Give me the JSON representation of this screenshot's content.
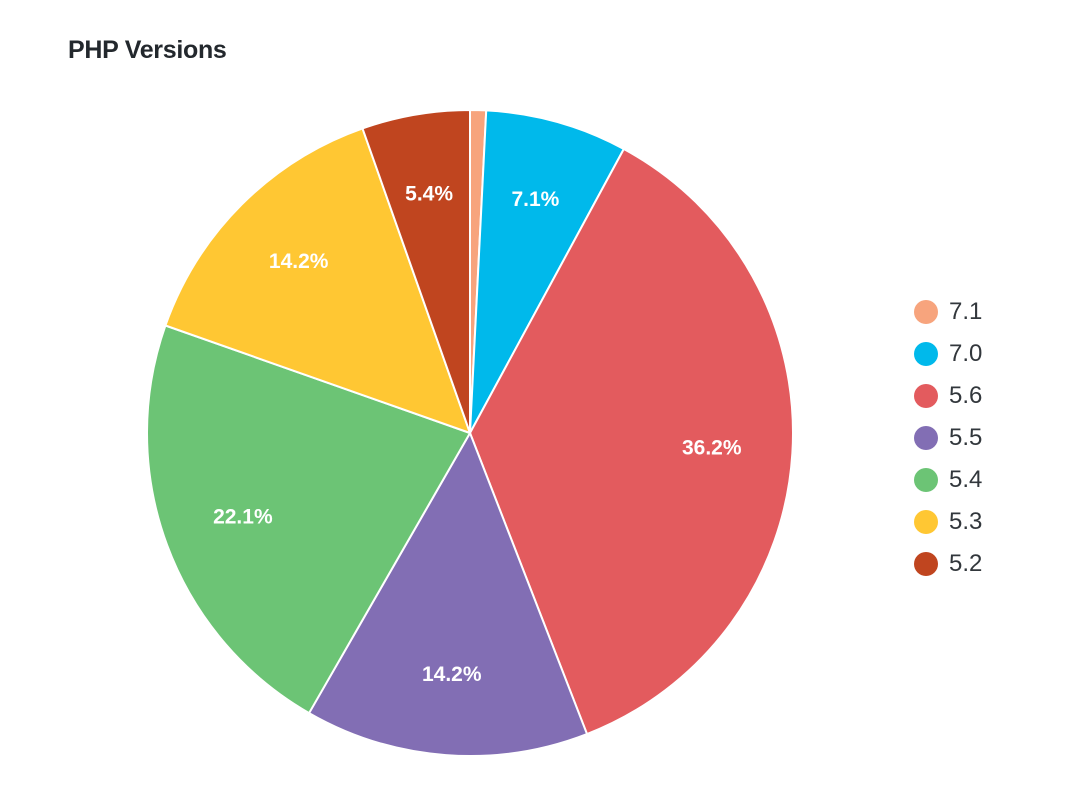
{
  "chart_data": {
    "type": "pie",
    "title": "PHP Versions",
    "slices": [
      {
        "label": "7.1",
        "value": 0.8,
        "color": "#f7a47d",
        "display": ""
      },
      {
        "label": "7.0",
        "value": 7.1,
        "color": "#00b9eb",
        "display": "7.1%"
      },
      {
        "label": "5.6",
        "value": 36.2,
        "color": "#e35b5e",
        "display": "36.2%"
      },
      {
        "label": "5.5",
        "value": 14.2,
        "color": "#826eb4",
        "display": "14.2%"
      },
      {
        "label": "5.4",
        "value": 22.1,
        "color": "#6cc475",
        "display": "22.1%"
      },
      {
        "label": "5.3",
        "value": 14.2,
        "color": "#ffc733",
        "display": "14.2%"
      },
      {
        "label": "5.2",
        "value": 5.4,
        "color": "#c0451f",
        "display": "5.4%"
      }
    ],
    "legend_position": "right"
  }
}
